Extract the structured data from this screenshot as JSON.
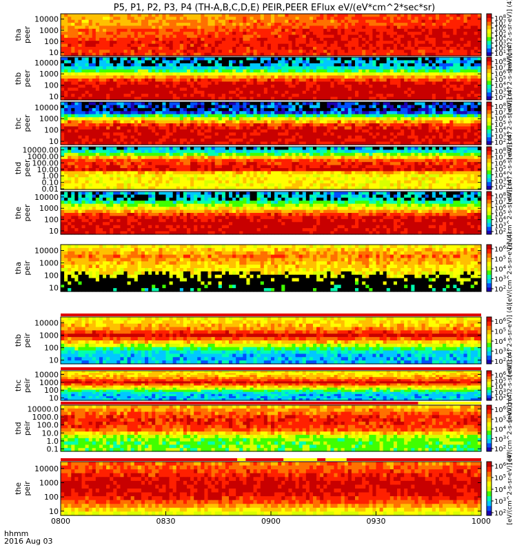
{
  "title": "P5, P1, P2, P3, P4 (TH-A,B,C,D,E) PEIR,PEER EFlux eV/(eV*cm^2*sec*sr)",
  "x_axis": {
    "ticks": [
      "0800",
      "0830",
      "0900",
      "0930",
      "1000"
    ],
    "row_label": "hhmm",
    "date_label": "2016 Aug 03"
  },
  "colors": {
    "palette": [
      "#000000",
      "#1a00b4",
      "#0050ff",
      "#00c8ff",
      "#00ffb0",
      "#40ff00",
      "#d8ff00",
      "#ffff00",
      "#ffc000",
      "#ff7000",
      "#ff2000",
      "#c80000"
    ],
    "flag_red": "#e00000",
    "flag_yellow": "#ffff00"
  },
  "chart_data": {
    "type": "heatmap",
    "x_range": [
      "0800",
      "1000"
    ],
    "panels": [
      {
        "name": "tha_peer",
        "label_line1": "tha",
        "label_line2": "peer",
        "y_ticks": [
          "10000",
          "1000",
          "100",
          "10"
        ],
        "y_range": [
          5,
          30000
        ],
        "y_scale": "log",
        "colorbar_ticks": [
          "10^8",
          "10^7",
          "10^6",
          "10^5",
          "10^4",
          "10^3",
          "10^2",
          "10^1"
        ],
        "colorbar_label": "[eV/(cm^2-s-sr-eV)] (4)",
        "profile": [
          [
            1,
            10
          ],
          [
            2,
            10
          ],
          [
            2.5,
            9
          ],
          [
            3,
            9
          ],
          [
            3.5,
            8
          ],
          [
            4,
            8
          ]
        ],
        "profile_end": [
          [
            1,
            10
          ],
          [
            2,
            11
          ],
          [
            2.5,
            11
          ],
          [
            3,
            11
          ],
          [
            3.5,
            10
          ],
          [
            4,
            10
          ]
        ],
        "noise": 0.8,
        "black_above": 0,
        "black_below": 0,
        "flag": null
      },
      {
        "name": "thb_peer",
        "label_line1": "thb",
        "label_line2": "peer",
        "y_ticks": [
          "10000",
          "1000",
          "100",
          "10"
        ],
        "y_range": [
          5,
          30000
        ],
        "y_scale": "log",
        "colorbar_ticks": [
          "10^8",
          "10^7",
          "10^6",
          "10^5",
          "10^4",
          "10^3",
          "10^2"
        ],
        "colorbar_label": "[eV/(cm^2-s-sr-eV)] (4)",
        "profile": [
          [
            1,
            11
          ],
          [
            2,
            11
          ],
          [
            2.4,
            10
          ],
          [
            2.8,
            8
          ],
          [
            3.2,
            5
          ],
          [
            3.6,
            3
          ],
          [
            4.3,
            3
          ]
        ],
        "profile_end": null,
        "noise": 0.9,
        "black_above": 3.7,
        "black_below": 0,
        "flag": null
      },
      {
        "name": "thc_peer",
        "label_line1": "thc",
        "label_line2": "peer",
        "y_ticks": [
          "10000",
          "1000",
          "100",
          "10"
        ],
        "y_range": [
          5,
          30000
        ],
        "y_scale": "log",
        "colorbar_ticks": [
          "10^8",
          "10^7",
          "10^6",
          "10^5",
          "10^4",
          "10^3",
          "10^2"
        ],
        "colorbar_label": "[eV/(cm^2-s-sr-eV)] (4)",
        "profile": [
          [
            1,
            11
          ],
          [
            2,
            11
          ],
          [
            2.4,
            10
          ],
          [
            2.8,
            8
          ],
          [
            3.2,
            5
          ],
          [
            3.5,
            2
          ],
          [
            4.3,
            2
          ]
        ],
        "profile_end": null,
        "noise": 1.2,
        "black_above": 3.8,
        "black_below": 0,
        "flag": null
      },
      {
        "name": "thd_peer",
        "label_line1": "thd",
        "label_line2": "peer",
        "y_ticks": [
          "10000.00",
          "1000.00",
          "100.00",
          "10.00",
          "1.00",
          "0.10",
          "0.01"
        ],
        "y_range": [
          0.008,
          30000
        ],
        "y_scale": "log",
        "colorbar_ticks": [
          "10^8",
          "10^7",
          "10^6",
          "10^5",
          "10^4",
          "10^3",
          "10^2"
        ],
        "colorbar_label": "[eV/(cm^2-s-sr-eV)] (4)",
        "profile": [
          [
            -2,
            7
          ],
          [
            0,
            7
          ],
          [
            0.5,
            8
          ],
          [
            1,
            11
          ],
          [
            1.6,
            10
          ],
          [
            2.2,
            10
          ],
          [
            2.6,
            9
          ],
          [
            3,
            7
          ],
          [
            3.5,
            4
          ],
          [
            4.3,
            3
          ]
        ],
        "profile_end": null,
        "noise": 0.9,
        "black_above": 3.9,
        "black_below": 0,
        "flag": null
      },
      {
        "name": "the_peer",
        "label_line1": "the",
        "label_line2": "peer",
        "y_ticks": [
          "10000",
          "1000",
          "100",
          "10"
        ],
        "y_range": [
          5,
          30000
        ],
        "y_scale": "log",
        "colorbar_ticks": [
          "10^8",
          "10^7",
          "10^6",
          "10^5",
          "10^4",
          "10^3",
          "10^2"
        ],
        "colorbar_label": "[eV/(cm^2-s-sr-eV)] (4)",
        "profile": [
          [
            1,
            11
          ],
          [
            2,
            11
          ],
          [
            2.4,
            10
          ],
          [
            2.8,
            8
          ],
          [
            3.2,
            6
          ],
          [
            3.6,
            4
          ],
          [
            4.3,
            3
          ]
        ],
        "profile_end": null,
        "noise": 1.0,
        "black_above": 3.8,
        "black_below": 0,
        "flag": null
      },
      {
        "name": "tha_peir",
        "label_line1": "tha",
        "label_line2": "peir",
        "y_ticks": [
          "10000",
          "1000",
          "100",
          "10"
        ],
        "y_range": [
          5,
          30000
        ],
        "y_scale": "log",
        "colorbar_ticks": [
          "10^6",
          "10^5",
          "10^4",
          "10^3",
          "10^2"
        ],
        "colorbar_label": "[eV/(cm^2-s-sr-eV)] (4)",
        "profile": [
          [
            0.7,
            4
          ],
          [
            1.5,
            6
          ],
          [
            2.2,
            7
          ],
          [
            3,
            8
          ],
          [
            3.6,
            9
          ],
          [
            4.3,
            7
          ]
        ],
        "profile_end": null,
        "noise": 1.0,
        "black_above": 0,
        "black_below": 1.9,
        "flag": null
      },
      {
        "name": "thb_peir",
        "label_line1": "thb",
        "label_line2": "peir",
        "y_ticks": [
          "10000",
          "1000",
          "100",
          "10"
        ],
        "y_range": [
          5,
          30000
        ],
        "y_scale": "log",
        "colorbar_ticks": [
          "10^6",
          "10^5",
          "10^4",
          "10^3",
          "10^2"
        ],
        "colorbar_label": "[eV/(cm^2-s-sr-eV)] (4)",
        "profile": [
          [
            0.7,
            3
          ],
          [
            1.5,
            3
          ],
          [
            2,
            5
          ],
          [
            2.5,
            8
          ],
          [
            3,
            11
          ],
          [
            3.4,
            9
          ],
          [
            3.8,
            8
          ],
          [
            4.3,
            7
          ]
        ],
        "profile_end": null,
        "noise": 0.9,
        "black_above": 0,
        "black_below": 0,
        "flag": "red"
      },
      {
        "name": "thc_peir",
        "label_line1": "thc",
        "label_line2": "peir",
        "y_ticks": [
          "10000",
          "1000",
          "100",
          "10"
        ],
        "y_range": [
          5,
          30000
        ],
        "y_scale": "log",
        "colorbar_ticks": [
          "10^6",
          "10^5",
          "10^4",
          "10^3",
          "10^2"
        ],
        "colorbar_label": "[eV/(cm^2-s-sr-eV)] (4)",
        "profile": [
          [
            0.7,
            3
          ],
          [
            1.5,
            3
          ],
          [
            2,
            5
          ],
          [
            2.5,
            8
          ],
          [
            3,
            11
          ],
          [
            3.4,
            9
          ],
          [
            3.8,
            8
          ],
          [
            4.3,
            7
          ]
        ],
        "profile_end": null,
        "noise": 0.9,
        "black_above": 0,
        "black_below": 0,
        "flag": "red"
      },
      {
        "name": "thd_peir",
        "label_line1": "thd",
        "label_line2": "peir",
        "y_ticks": [
          "10000.0",
          "1000.0",
          "100.0",
          "10.0",
          "1.0",
          "0.1"
        ],
        "y_range": [
          0.05,
          30000
        ],
        "y_scale": "log",
        "colorbar_ticks": [
          "10^6",
          "10^5",
          "10^4",
          "10^3",
          "10^2"
        ],
        "colorbar_label": "[eV/(cm^2-s-sr-eV)] (4)",
        "profile": [
          [
            -1.3,
            5
          ],
          [
            0,
            5
          ],
          [
            0.6,
            6
          ],
          [
            1.2,
            9
          ],
          [
            2,
            10
          ],
          [
            3,
            10
          ],
          [
            3.6,
            9
          ],
          [
            4.3,
            8
          ]
        ],
        "profile_end": null,
        "noise": 0.9,
        "black_above": 0,
        "black_below": 0,
        "flag": "red_then_yellow"
      },
      {
        "name": "the_peir",
        "label_line1": "the",
        "label_line2": "peir",
        "y_ticks": [
          "10000",
          "1000",
          "100",
          "10"
        ],
        "y_range": [
          5,
          30000
        ],
        "y_scale": "log",
        "colorbar_ticks": [
          "10^6",
          "10^5",
          "10^4",
          "10^3",
          "10^2"
        ],
        "colorbar_label": "[eV/(cm^2-s-sr-eV)] (4)",
        "profile": [
          [
            0.7,
            6
          ],
          [
            1.2,
            8
          ],
          [
            1.8,
            10
          ],
          [
            2.5,
            11
          ],
          [
            3,
            11
          ],
          [
            3.6,
            10
          ],
          [
            4.3,
            9
          ]
        ],
        "profile_end": null,
        "noise": 0.9,
        "black_above": 0,
        "black_below": 0,
        "flag": "mixed"
      }
    ]
  }
}
